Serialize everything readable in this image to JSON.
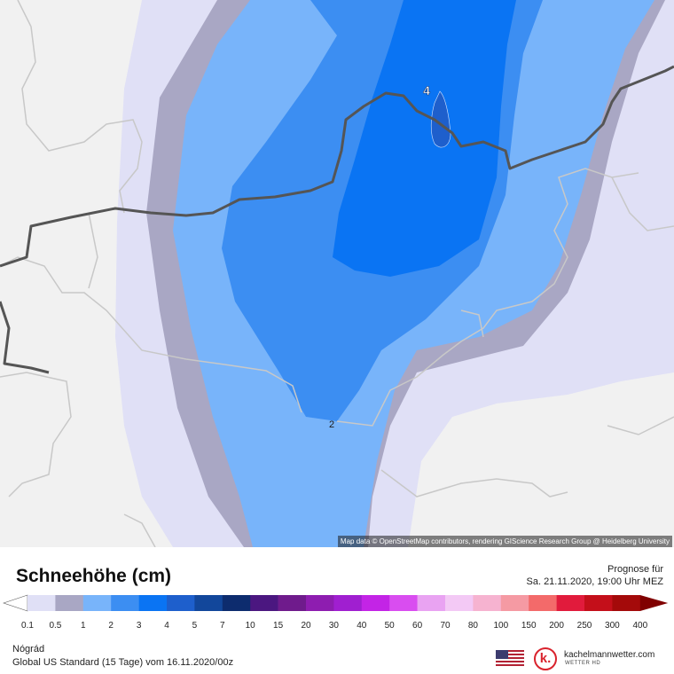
{
  "map": {
    "attribution": "Map data © OpenStreetMap contributors, rendering GIScience Research Group @ Heidelberg University",
    "contour_labels": [
      "4",
      "2"
    ],
    "colors": {
      "background": "#f1f1f1",
      "band_0_1": "#e0e0f6",
      "band_0_5": "#a9a7c4",
      "band_1": "#78b4fa",
      "band_2": "#3c8ef2",
      "band_3": "#0a74f3",
      "band_4": "#1e5fcc",
      "border": "#555555",
      "minor_border": "#c8c8c8"
    }
  },
  "header": {
    "title": "Schneehöhe (cm)",
    "forecast_label": "Prognose für",
    "forecast_time": "Sa. 21.11.2020, 19:00 Uhr MEZ"
  },
  "legend": {
    "labels": [
      "0.1",
      "0.5",
      "1",
      "2",
      "3",
      "4",
      "5",
      "7",
      "10",
      "15",
      "20",
      "30",
      "40",
      "50",
      "60",
      "70",
      "80",
      "100",
      "150",
      "200",
      "250",
      "300",
      "400"
    ],
    "colors": [
      "#e0e0f6",
      "#a9a7c4",
      "#78b4fa",
      "#3c8ef2",
      "#0a74f3",
      "#1e5fcc",
      "#12479b",
      "#0d2c6e",
      "#4b1780",
      "#6f1b8c",
      "#8e1db0",
      "#a01fd0",
      "#c324e6",
      "#d94df0",
      "#e9a3f2",
      "#f3c9f5",
      "#f6b3d0",
      "#f59aa3",
      "#f36a6a",
      "#e11b3c",
      "#c40f1a",
      "#a40a0a",
      "#800000"
    ]
  },
  "footer": {
    "region": "Nógrád",
    "model": "Global US Standard (15 Tage) vom 16.11.2020/00z",
    "brand": "kachelmannwetter.com",
    "brand_sub": "WETTER HD",
    "logo_letter": "k."
  }
}
